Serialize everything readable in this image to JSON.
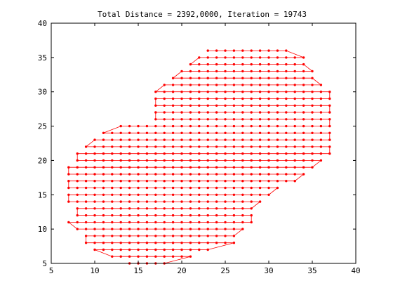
{
  "chart_data": {
    "type": "line",
    "title": "Total Distance = 2392,0000, Iteration = 19743",
    "xlabel": "",
    "ylabel": "",
    "xlim": [
      5,
      40
    ],
    "ylim": [
      5,
      40
    ],
    "x_ticks": [
      5,
      10,
      15,
      20,
      25,
      30,
      35,
      40
    ],
    "y_ticks": [
      5,
      10,
      15,
      20,
      25,
      30,
      35,
      40
    ],
    "grid": false,
    "series": [
      {
        "name": "tour",
        "color": "#ff0000",
        "marker": "dot",
        "description": "TSP tour over integer grid cities inside a blob-shaped region, traced as horizontal row segments",
        "rows": [
          {
            "y": 36,
            "x": [
              23,
              32
            ]
          },
          {
            "y": 35,
            "x": [
              22,
              34
            ]
          },
          {
            "y": 34,
            "x": [
              21,
              34
            ]
          },
          {
            "y": 33,
            "x": [
              20,
              35
            ]
          },
          {
            "y": 32,
            "x": [
              19,
              35
            ]
          },
          {
            "y": 31,
            "x": [
              18,
              36
            ]
          },
          {
            "y": 30,
            "x": [
              17,
              37
            ]
          },
          {
            "y": 29,
            "x": [
              17,
              37
            ]
          },
          {
            "y": 28,
            "x": [
              17,
              37
            ]
          },
          {
            "y": 27,
            "x": [
              17,
              37
            ]
          },
          {
            "y": 26,
            "x": [
              17,
              37
            ]
          },
          {
            "y": 25,
            "x": [
              13,
              37
            ]
          },
          {
            "y": 24,
            "x": [
              11,
              37
            ]
          },
          {
            "y": 23,
            "x": [
              10,
              37
            ]
          },
          {
            "y": 22,
            "x": [
              9,
              37
            ]
          },
          {
            "y": 21,
            "x": [
              8,
              37
            ]
          },
          {
            "y": 20,
            "x": [
              8,
              36
            ]
          },
          {
            "y": 19,
            "x": [
              7,
              35
            ]
          },
          {
            "y": 18,
            "x": [
              7,
              34
            ]
          },
          {
            "y": 17,
            "x": [
              7,
              33
            ]
          },
          {
            "y": 16,
            "x": [
              7,
              31
            ]
          },
          {
            "y": 15,
            "x": [
              7,
              30
            ]
          },
          {
            "y": 14,
            "x": [
              7,
              29
            ]
          },
          {
            "y": 13,
            "x": [
              8,
              28
            ]
          },
          {
            "y": 12,
            "x": [
              8,
              28
            ]
          },
          {
            "y": 11,
            "x": [
              7,
              28
            ]
          },
          {
            "y": 10,
            "x": [
              8,
              27
            ]
          },
          {
            "y": 9,
            "x": [
              9,
              26
            ]
          },
          {
            "y": 8,
            "x": [
              9,
              26
            ]
          },
          {
            "y": 7,
            "x": [
              10,
              23
            ]
          },
          {
            "y": 6,
            "x": [
              12,
              21
            ]
          },
          {
            "y": 5,
            "x": [
              14,
              18
            ]
          }
        ]
      }
    ]
  }
}
